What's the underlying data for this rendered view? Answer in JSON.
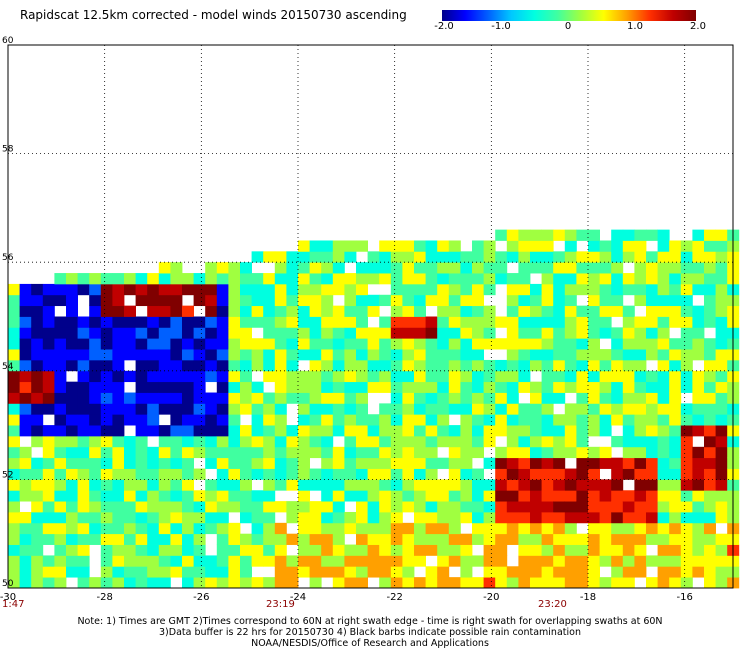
{
  "title": "Rapidscat 12.5km corrected - model winds 20150730 ascending",
  "colorbar": {
    "ticks": [
      "-2.0",
      "-1.0",
      "0",
      "1.0",
      "2.0"
    ],
    "colors": [
      "#00008b",
      "#0000ff",
      "#0060ff",
      "#00c8ff",
      "#00ffe0",
      "#40ffa0",
      "#a0ff40",
      "#ffff00",
      "#ffa000",
      "#ff3000",
      "#c00000",
      "#800000"
    ]
  },
  "time_labels": [
    "1:47",
    "23:19",
    "23:20"
  ],
  "notes": [
    "Note: 1) Times are GMT 2)Times correspond to 60N at right swath edge - time is right swath for overlapping swaths at 60N",
    "3)Data buffer is 22 hrs for 20150730 4) Black barbs indicate possible rain contamination",
    "NOAA/NESDIS/Office of Research and Applications"
  ],
  "chart_data": {
    "type": "heatmap",
    "title": "Rapidscat 12.5km corrected - model winds 20150730 ascending",
    "xlabel": "",
    "ylabel": "",
    "xlim": [
      -30,
      -15
    ],
    "ylim": [
      50,
      60
    ],
    "x_ticks": [
      "-30",
      "-28",
      "-26",
      "-24",
      "-22",
      "-20",
      "-18",
      "-16"
    ],
    "y_ticks": [
      "50",
      "52",
      "54",
      "56",
      "58",
      "60"
    ],
    "grid": "dotted",
    "value_range": [
      -2.0,
      2.0
    ],
    "swath_top_lat_by_lon": [
      [
        -30,
        55.5
      ],
      [
        -28,
        55.7
      ],
      [
        -25,
        56.0
      ],
      [
        -23.5,
        56.3
      ],
      [
        -20,
        56.4
      ],
      [
        -18,
        56.5
      ],
      [
        -15,
        56.5
      ]
    ],
    "regions": [
      {
        "lon": [
          -29.8,
          -25.4
        ],
        "lat": [
          52.8,
          55.6
        ],
        "value": -1.8,
        "label": "strong negative"
      },
      {
        "lon": [
          -28.2,
          -25.6
        ],
        "lat": [
          55.0,
          55.7
        ],
        "value": 1.9,
        "label": "strong positive band"
      },
      {
        "lon": [
          -29.9,
          -29.1
        ],
        "lat": [
          53.4,
          54.0
        ],
        "value": 1.8
      },
      {
        "lon": [
          -22.0,
          -21.2
        ],
        "lat": [
          54.6,
          55.1
        ],
        "value": 1.8
      },
      {
        "lon": [
          -20.0,
          -16.5
        ],
        "lat": [
          51.0,
          52.4
        ],
        "value": 1.6,
        "label": "positive ridge"
      },
      {
        "lon": [
          -16.0,
          -15.1
        ],
        "lat": [
          51.9,
          53.0
        ],
        "value": 1.7
      },
      {
        "lon": [
          -24.5,
          -15.0
        ],
        "lat": [
          50.0,
          51.2
        ],
        "value": 0.6
      }
    ]
  }
}
